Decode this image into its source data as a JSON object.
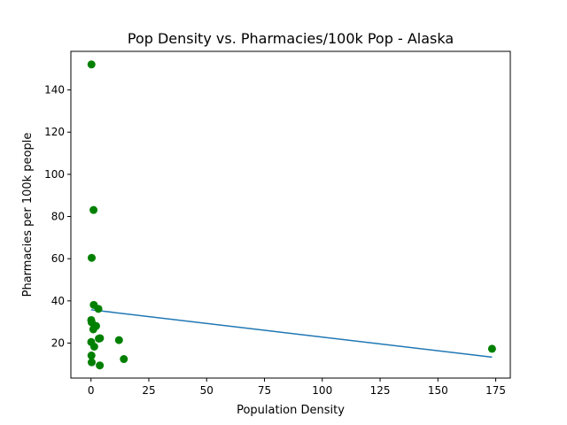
{
  "chart_data": {
    "type": "scatter",
    "title": "Pop Density vs. Pharmacies/100k Pop - Alaska",
    "xlabel": "Population Density",
    "ylabel": "Pharmacies per 100k people",
    "xlim": [
      -8.7,
      181.3
    ],
    "ylim": [
      3.4,
      158.3
    ],
    "xticks": [
      0,
      25,
      50,
      75,
      100,
      125,
      150,
      175
    ],
    "yticks": [
      20,
      40,
      60,
      80,
      100,
      120,
      140
    ],
    "grid": false,
    "legend": "none",
    "colors": {
      "points": "#008000",
      "fit_line": "#1f77b4",
      "axes": "#000000"
    },
    "points": [
      {
        "x": 0.2,
        "y": 152.1
      },
      {
        "x": 1.1,
        "y": 83.1
      },
      {
        "x": 0.3,
        "y": 60.4
      },
      {
        "x": 1.2,
        "y": 38.1
      },
      {
        "x": 3.2,
        "y": 36.2
      },
      {
        "x": 0.1,
        "y": 30.9
      },
      {
        "x": 0.3,
        "y": 29.8
      },
      {
        "x": 2.2,
        "y": 28.1
      },
      {
        "x": 1.0,
        "y": 26.5
      },
      {
        "x": 3.4,
        "y": 22.1
      },
      {
        "x": 3.9,
        "y": 22.3
      },
      {
        "x": 0.1,
        "y": 20.5
      },
      {
        "x": 12.1,
        "y": 21.4
      },
      {
        "x": 1.4,
        "y": 18.3
      },
      {
        "x": 173.4,
        "y": 17.3
      },
      {
        "x": 0.2,
        "y": 14.1
      },
      {
        "x": 14.2,
        "y": 12.4
      },
      {
        "x": 0.3,
        "y": 10.9
      },
      {
        "x": 3.8,
        "y": 9.4
      }
    ],
    "fit_line": [
      {
        "x": 0.0,
        "y": 35.8
      },
      {
        "x": 173.4,
        "y": 13.3
      }
    ]
  }
}
